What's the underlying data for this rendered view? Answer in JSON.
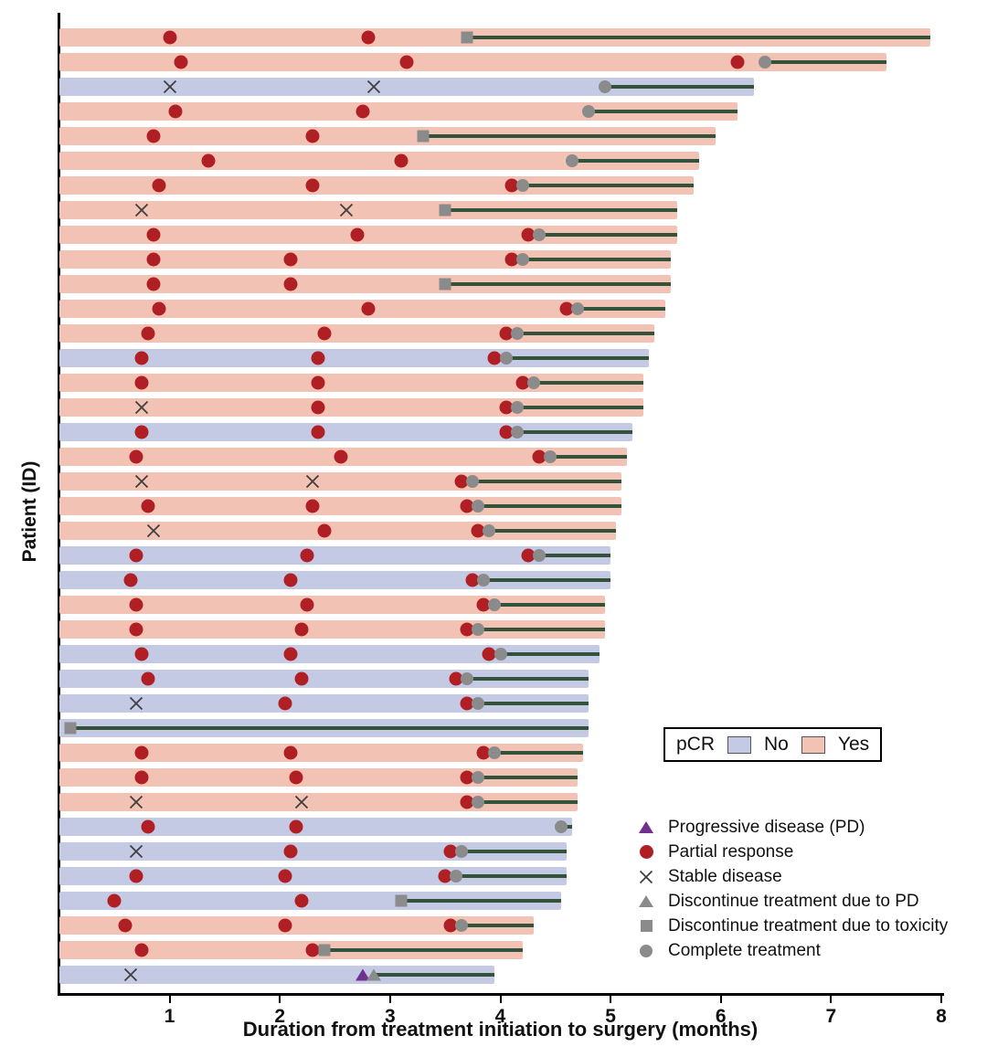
{
  "chart_data": {
    "type": "bar",
    "subtype": "swimmer_plot",
    "orientation": "horizontal",
    "title": "",
    "xlabel": "Duration from treatment initiation to surgery (months)",
    "ylabel": "Patient (ID)",
    "xlim": [
      0,
      8
    ],
    "xticks": [
      1,
      2,
      3,
      4,
      5,
      6,
      7,
      8
    ],
    "grid": false,
    "colors": {
      "pcr_yes": "#f2c3b4",
      "pcr_no": "#c4cae4",
      "partial_response": "#b01f24",
      "stable_disease": "#3f3f3f",
      "progressive_disease": "#72308e",
      "discontinue_gray": "#8b8b8b",
      "complete_gray": "#8b8b8b",
      "treatment_line": "#33523a"
    },
    "pcr_legend": {
      "label": "pCR",
      "items": [
        {
          "label": "No",
          "color": "#c4cae4"
        },
        {
          "label": "Yes",
          "color": "#f2c3b4"
        }
      ]
    },
    "marker_legend": [
      {
        "label": "Progressive disease (PD)",
        "marker": "pd"
      },
      {
        "label": "Partial response",
        "marker": "pr"
      },
      {
        "label": "Stable disease",
        "marker": "sd"
      },
      {
        "label": "Discontinue treatment due to PD",
        "marker": "dpd"
      },
      {
        "label": "Discontinue treatment due to toxicity",
        "marker": "tox"
      },
      {
        "label": "Complete treatment",
        "marker": "ct"
      }
    ],
    "patients": [
      {
        "pcr": "yes",
        "end": 7.9,
        "line_start": 3.7,
        "markers": [
          {
            "t": 1.0,
            "type": "pr"
          },
          {
            "t": 2.8,
            "type": "pr"
          },
          {
            "t": 3.7,
            "type": "tox"
          }
        ]
      },
      {
        "pcr": "yes",
        "end": 7.5,
        "line_start": 6.4,
        "markers": [
          {
            "t": 1.1,
            "type": "pr"
          },
          {
            "t": 3.15,
            "type": "pr"
          },
          {
            "t": 6.15,
            "type": "pr"
          },
          {
            "t": 6.4,
            "type": "ct"
          }
        ]
      },
      {
        "pcr": "no",
        "end": 6.3,
        "line_start": 4.95,
        "markers": [
          {
            "t": 1.0,
            "type": "sd"
          },
          {
            "t": 2.85,
            "type": "sd"
          },
          {
            "t": 4.95,
            "type": "ct"
          }
        ]
      },
      {
        "pcr": "yes",
        "end": 6.15,
        "line_start": 4.8,
        "markers": [
          {
            "t": 1.05,
            "type": "pr"
          },
          {
            "t": 2.75,
            "type": "pr"
          },
          {
            "t": 4.8,
            "type": "ct"
          }
        ]
      },
      {
        "pcr": "yes",
        "end": 5.95,
        "line_start": 3.3,
        "markers": [
          {
            "t": 0.85,
            "type": "pr"
          },
          {
            "t": 2.3,
            "type": "pr"
          },
          {
            "t": 3.3,
            "type": "tox"
          }
        ]
      },
      {
        "pcr": "yes",
        "end": 5.8,
        "line_start": 4.65,
        "markers": [
          {
            "t": 1.35,
            "type": "pr"
          },
          {
            "t": 3.1,
            "type": "pr"
          },
          {
            "t": 4.65,
            "type": "ct"
          }
        ]
      },
      {
        "pcr": "yes",
        "end": 5.75,
        "line_start": 4.2,
        "markers": [
          {
            "t": 0.9,
            "type": "pr"
          },
          {
            "t": 2.3,
            "type": "pr"
          },
          {
            "t": 4.1,
            "type": "pr"
          },
          {
            "t": 4.2,
            "type": "ct"
          }
        ]
      },
      {
        "pcr": "yes",
        "end": 5.6,
        "line_start": 3.5,
        "markers": [
          {
            "t": 0.75,
            "type": "sd"
          },
          {
            "t": 2.6,
            "type": "sd"
          },
          {
            "t": 3.5,
            "type": "tox"
          }
        ]
      },
      {
        "pcr": "yes",
        "end": 5.6,
        "line_start": 4.35,
        "markers": [
          {
            "t": 0.85,
            "type": "pr"
          },
          {
            "t": 2.7,
            "type": "pr"
          },
          {
            "t": 4.25,
            "type": "pr"
          },
          {
            "t": 4.35,
            "type": "ct"
          }
        ]
      },
      {
        "pcr": "yes",
        "end": 5.55,
        "line_start": 4.2,
        "markers": [
          {
            "t": 0.85,
            "type": "pr"
          },
          {
            "t": 2.1,
            "type": "pr"
          },
          {
            "t": 4.1,
            "type": "pr"
          },
          {
            "t": 4.2,
            "type": "ct"
          }
        ]
      },
      {
        "pcr": "yes",
        "end": 5.55,
        "line_start": 3.5,
        "markers": [
          {
            "t": 0.85,
            "type": "pr"
          },
          {
            "t": 2.1,
            "type": "pr"
          },
          {
            "t": 3.5,
            "type": "tox"
          }
        ]
      },
      {
        "pcr": "yes",
        "end": 5.5,
        "line_start": 4.7,
        "markers": [
          {
            "t": 0.9,
            "type": "pr"
          },
          {
            "t": 2.8,
            "type": "pr"
          },
          {
            "t": 4.6,
            "type": "pr"
          },
          {
            "t": 4.7,
            "type": "ct"
          }
        ]
      },
      {
        "pcr": "yes",
        "end": 5.4,
        "line_start": 4.15,
        "markers": [
          {
            "t": 0.8,
            "type": "pr"
          },
          {
            "t": 2.4,
            "type": "pr"
          },
          {
            "t": 4.05,
            "type": "pr"
          },
          {
            "t": 4.15,
            "type": "ct"
          }
        ]
      },
      {
        "pcr": "no",
        "end": 5.35,
        "line_start": 4.05,
        "markers": [
          {
            "t": 0.75,
            "type": "pr"
          },
          {
            "t": 2.35,
            "type": "pr"
          },
          {
            "t": 3.95,
            "type": "pr"
          },
          {
            "t": 4.05,
            "type": "ct"
          }
        ]
      },
      {
        "pcr": "yes",
        "end": 5.3,
        "line_start": 4.3,
        "markers": [
          {
            "t": 0.75,
            "type": "pr"
          },
          {
            "t": 2.35,
            "type": "pr"
          },
          {
            "t": 4.2,
            "type": "pr"
          },
          {
            "t": 4.3,
            "type": "ct"
          }
        ]
      },
      {
        "pcr": "yes",
        "end": 5.3,
        "line_start": 4.15,
        "markers": [
          {
            "t": 0.75,
            "type": "sd"
          },
          {
            "t": 2.35,
            "type": "pr"
          },
          {
            "t": 4.05,
            "type": "pr"
          },
          {
            "t": 4.15,
            "type": "ct"
          }
        ]
      },
      {
        "pcr": "no",
        "end": 5.2,
        "line_start": 4.15,
        "markers": [
          {
            "t": 0.75,
            "type": "pr"
          },
          {
            "t": 2.35,
            "type": "pr"
          },
          {
            "t": 4.05,
            "type": "pr"
          },
          {
            "t": 4.15,
            "type": "ct"
          }
        ]
      },
      {
        "pcr": "yes",
        "end": 5.15,
        "line_start": 4.45,
        "markers": [
          {
            "t": 0.7,
            "type": "pr"
          },
          {
            "t": 2.55,
            "type": "pr"
          },
          {
            "t": 4.35,
            "type": "pr"
          },
          {
            "t": 4.45,
            "type": "ct"
          }
        ]
      },
      {
        "pcr": "yes",
        "end": 5.1,
        "line_start": 3.75,
        "markers": [
          {
            "t": 0.75,
            "type": "sd"
          },
          {
            "t": 2.3,
            "type": "sd"
          },
          {
            "t": 3.65,
            "type": "pr"
          },
          {
            "t": 3.75,
            "type": "ct"
          }
        ]
      },
      {
        "pcr": "yes",
        "end": 5.1,
        "line_start": 3.8,
        "markers": [
          {
            "t": 0.8,
            "type": "pr"
          },
          {
            "t": 2.3,
            "type": "pr"
          },
          {
            "t": 3.7,
            "type": "pr"
          },
          {
            "t": 3.8,
            "type": "ct"
          }
        ]
      },
      {
        "pcr": "yes",
        "end": 5.05,
        "line_start": 3.9,
        "markers": [
          {
            "t": 0.85,
            "type": "sd"
          },
          {
            "t": 2.4,
            "type": "pr"
          },
          {
            "t": 3.8,
            "type": "pr"
          },
          {
            "t": 3.9,
            "type": "ct"
          }
        ]
      },
      {
        "pcr": "no",
        "end": 5.0,
        "line_start": 4.35,
        "markers": [
          {
            "t": 0.7,
            "type": "pr"
          },
          {
            "t": 2.25,
            "type": "pr"
          },
          {
            "t": 4.25,
            "type": "pr"
          },
          {
            "t": 4.35,
            "type": "ct"
          }
        ]
      },
      {
        "pcr": "no",
        "end": 5.0,
        "line_start": 3.85,
        "markers": [
          {
            "t": 0.65,
            "type": "pr"
          },
          {
            "t": 2.1,
            "type": "pr"
          },
          {
            "t": 3.75,
            "type": "pr"
          },
          {
            "t": 3.85,
            "type": "ct"
          }
        ]
      },
      {
        "pcr": "yes",
        "end": 4.95,
        "line_start": 3.95,
        "markers": [
          {
            "t": 0.7,
            "type": "pr"
          },
          {
            "t": 2.25,
            "type": "pr"
          },
          {
            "t": 3.85,
            "type": "pr"
          },
          {
            "t": 3.95,
            "type": "ct"
          }
        ]
      },
      {
        "pcr": "yes",
        "end": 4.95,
        "line_start": 3.8,
        "markers": [
          {
            "t": 0.7,
            "type": "pr"
          },
          {
            "t": 2.2,
            "type": "pr"
          },
          {
            "t": 3.7,
            "type": "pr"
          },
          {
            "t": 3.8,
            "type": "ct"
          }
        ]
      },
      {
        "pcr": "no",
        "end": 4.9,
        "line_start": 4.0,
        "markers": [
          {
            "t": 0.75,
            "type": "pr"
          },
          {
            "t": 2.1,
            "type": "pr"
          },
          {
            "t": 3.9,
            "type": "pr"
          },
          {
            "t": 4.0,
            "type": "ct"
          }
        ]
      },
      {
        "pcr": "no",
        "end": 4.8,
        "line_start": 3.7,
        "markers": [
          {
            "t": 0.8,
            "type": "pr"
          },
          {
            "t": 2.2,
            "type": "pr"
          },
          {
            "t": 3.6,
            "type": "pr"
          },
          {
            "t": 3.7,
            "type": "ct"
          }
        ]
      },
      {
        "pcr": "no",
        "end": 4.8,
        "line_start": 3.8,
        "markers": [
          {
            "t": 0.7,
            "type": "sd"
          },
          {
            "t": 2.05,
            "type": "pr"
          },
          {
            "t": 3.7,
            "type": "pr"
          },
          {
            "t": 3.8,
            "type": "ct"
          }
        ]
      },
      {
        "pcr": "no",
        "end": 4.8,
        "line_start": 0.1,
        "markers": [
          {
            "t": 0.1,
            "type": "tox"
          }
        ]
      },
      {
        "pcr": "yes",
        "end": 4.75,
        "line_start": 3.95,
        "markers": [
          {
            "t": 0.75,
            "type": "pr"
          },
          {
            "t": 2.1,
            "type": "pr"
          },
          {
            "t": 3.85,
            "type": "pr"
          },
          {
            "t": 3.95,
            "type": "ct"
          }
        ]
      },
      {
        "pcr": "yes",
        "end": 4.7,
        "line_start": 3.8,
        "markers": [
          {
            "t": 0.75,
            "type": "pr"
          },
          {
            "t": 2.15,
            "type": "pr"
          },
          {
            "t": 3.7,
            "type": "pr"
          },
          {
            "t": 3.8,
            "type": "ct"
          }
        ]
      },
      {
        "pcr": "yes",
        "end": 4.7,
        "line_start": 3.8,
        "markers": [
          {
            "t": 0.7,
            "type": "sd"
          },
          {
            "t": 2.2,
            "type": "sd"
          },
          {
            "t": 3.7,
            "type": "pr"
          },
          {
            "t": 3.8,
            "type": "ct"
          }
        ]
      },
      {
        "pcr": "no",
        "end": 4.65,
        "line_start": 4.55,
        "markers": [
          {
            "t": 0.8,
            "type": "pr"
          },
          {
            "t": 2.15,
            "type": "pr"
          },
          {
            "t": 4.55,
            "type": "ct"
          }
        ]
      },
      {
        "pcr": "no",
        "end": 4.6,
        "line_start": 3.65,
        "markers": [
          {
            "t": 0.7,
            "type": "sd"
          },
          {
            "t": 2.1,
            "type": "pr"
          },
          {
            "t": 3.55,
            "type": "pr"
          },
          {
            "t": 3.65,
            "type": "ct"
          }
        ]
      },
      {
        "pcr": "no",
        "end": 4.6,
        "line_start": 3.6,
        "markers": [
          {
            "t": 0.7,
            "type": "pr"
          },
          {
            "t": 2.05,
            "type": "pr"
          },
          {
            "t": 3.5,
            "type": "pr"
          },
          {
            "t": 3.6,
            "type": "ct"
          }
        ]
      },
      {
        "pcr": "no",
        "end": 4.55,
        "line_start": 3.1,
        "markers": [
          {
            "t": 0.5,
            "type": "pr"
          },
          {
            "t": 2.2,
            "type": "pr"
          },
          {
            "t": 3.1,
            "type": "tox"
          }
        ]
      },
      {
        "pcr": "yes",
        "end": 4.3,
        "line_start": 3.65,
        "markers": [
          {
            "t": 0.6,
            "type": "pr"
          },
          {
            "t": 2.05,
            "type": "pr"
          },
          {
            "t": 3.55,
            "type": "pr"
          },
          {
            "t": 3.65,
            "type": "ct"
          }
        ]
      },
      {
        "pcr": "yes",
        "end": 4.2,
        "line_start": 2.4,
        "markers": [
          {
            "t": 0.75,
            "type": "pr"
          },
          {
            "t": 2.3,
            "type": "pr"
          },
          {
            "t": 2.4,
            "type": "tox"
          }
        ]
      },
      {
        "pcr": "no",
        "end": 3.95,
        "line_start": 2.85,
        "markers": [
          {
            "t": 0.65,
            "type": "sd"
          },
          {
            "t": 2.75,
            "type": "pd"
          },
          {
            "t": 2.85,
            "type": "dpd"
          }
        ]
      }
    ]
  }
}
